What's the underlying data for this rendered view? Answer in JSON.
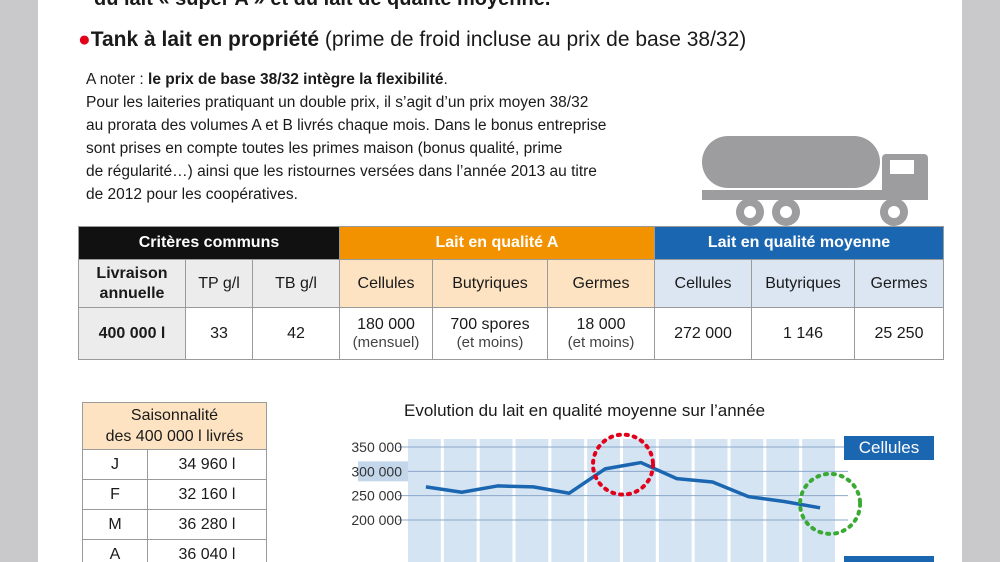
{
  "top_cut_text": "du lait « super A » et du lait de qualité moyenne.",
  "section": {
    "title_bold": "Tank à lait en propriété",
    "title_rest": " (prime de froid incluse au prix de base 38/32)"
  },
  "note": {
    "prefix": "A noter : ",
    "bold": "le prix de base 38/32 intègre la flexibilité",
    "bold_end": ".",
    "lines": [
      "Pour les laiteries pratiquant un double prix, il s’agit d’un prix moyen 38/32",
      "au prorata des volumes A et B livrés chaque mois. Dans le bonus entreprise",
      "sont prises en compte toutes les primes maison (bonus qualité, prime",
      "de régularité…) ainsi que les ristournes versées dans l’année 2013 au titre",
      "de 2012 pour les coopératives."
    ]
  },
  "table": {
    "groups": [
      "Critères communs",
      "Lait en qualité A",
      "Lait en qualité moyenne"
    ],
    "headers": [
      "Livraison",
      "annuelle",
      "TP g/l",
      "TB g/l",
      "Cellules",
      "Butyriques",
      "Germes",
      "Cellules",
      "Butyriques",
      "Germes"
    ],
    "row": {
      "livraison": "400 000 l",
      "tp": "33",
      "tb": "42",
      "a_cellules": "180 000",
      "a_cellules_sub": "(mensuel)",
      "a_butyriques": "700 spores",
      "a_butyriques_sub": "(et moins)",
      "a_germes": "18 000",
      "a_germes_sub": "(et moins)",
      "m_cellules": "272 000",
      "m_butyriques": "1 146",
      "m_germes": "25 250"
    }
  },
  "seasonality": {
    "title_line1": "Saisonnalité",
    "title_line2": "des 400 000 l livrés",
    "rows": [
      {
        "month": "J",
        "value": "34 960 l"
      },
      {
        "month": "F",
        "value": "32 160 l"
      },
      {
        "month": "M",
        "value": "36 280 l"
      },
      {
        "month": "A",
        "value": "36 040 l"
      }
    ]
  },
  "chart_data": {
    "type": "line",
    "title": "Evolution du lait en qualité moyenne sur l’année",
    "yticks": [
      "350 000",
      "300 000",
      "250 000",
      "200 000"
    ],
    "ylim": [
      200000,
      350000
    ],
    "legend": "Cellules",
    "series": [
      {
        "name": "Cellules",
        "values": [
          268000,
          257000,
          270000,
          268000,
          255000,
          305000,
          318000,
          285000,
          278000,
          248000,
          238000,
          225000
        ]
      }
    ],
    "highlight_max_color": "#e2001a",
    "highlight_min_color": "#3aaa35",
    "line_color": "#1b66b1"
  }
}
